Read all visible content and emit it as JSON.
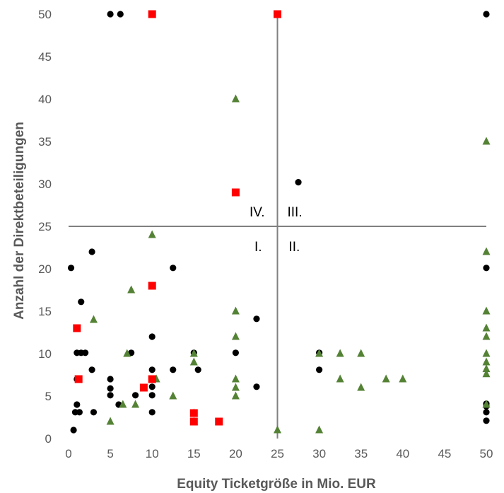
{
  "chart_data": {
    "type": "scatter",
    "title": "",
    "xlabel": "Equity Ticketgröße in Mio. EUR",
    "ylabel": "Anzahl der Direktbeteiligungen",
    "xlim": [
      0,
      50
    ],
    "ylim": [
      0,
      50
    ],
    "x_ticks": [
      "0",
      "5",
      "10",
      "15",
      "20",
      "25",
      "30",
      "35",
      "40",
      "45",
      "50"
    ],
    "y_ticks": [
      "0",
      "5",
      "10",
      "15",
      "20",
      "25",
      "30",
      "35",
      "40",
      "45",
      "50"
    ],
    "grid": false,
    "legend": "none",
    "reference_lines": {
      "x": 25,
      "y": 25
    },
    "quadrant_labels": [
      "IV.",
      "III.",
      "I.",
      "II."
    ],
    "series": [
      {
        "marker": "circle",
        "color": "#000000",
        "points": [
          [
            5,
            50
          ],
          [
            6.2,
            50
          ],
          [
            50,
            50
          ],
          [
            27.5,
            30.2
          ],
          [
            2.8,
            22
          ],
          [
            0.3,
            20.1
          ],
          [
            12.5,
            20.1
          ],
          [
            50,
            20.1
          ],
          [
            1.5,
            16.1
          ],
          [
            22.5,
            14.1
          ],
          [
            10,
            12
          ],
          [
            1,
            10.1
          ],
          [
            1.5,
            10.1
          ],
          [
            2,
            10.1
          ],
          [
            7.5,
            10.1
          ],
          [
            15,
            10.1
          ],
          [
            20,
            10.1
          ],
          [
            30,
            10.1
          ],
          [
            2.8,
            8.1
          ],
          [
            10,
            8.1
          ],
          [
            12.5,
            8.1
          ],
          [
            15.5,
            8.1
          ],
          [
            30,
            8.1
          ],
          [
            1,
            7
          ],
          [
            5,
            7
          ],
          [
            10,
            6.1
          ],
          [
            22.5,
            6.1
          ],
          [
            5,
            5.9
          ],
          [
            5,
            5.1
          ],
          [
            8,
            5.1
          ],
          [
            10,
            5.1
          ],
          [
            6,
            4
          ],
          [
            1,
            4
          ],
          [
            50,
            4.1
          ],
          [
            50,
            3.8
          ],
          [
            0.8,
            3.1
          ],
          [
            1.3,
            3.1
          ],
          [
            3,
            3.1
          ],
          [
            10,
            3.1
          ],
          [
            50,
            3.1
          ],
          [
            50,
            2.1
          ],
          [
            0.6,
            1
          ]
        ]
      },
      {
        "marker": "triangle",
        "color": "#548235",
        "points": [
          [
            20,
            40
          ],
          [
            50,
            35
          ],
          [
            10,
            24
          ],
          [
            50,
            22
          ],
          [
            7.5,
            17.5
          ],
          [
            20,
            15
          ],
          [
            50,
            15
          ],
          [
            3,
            14
          ],
          [
            50,
            13
          ],
          [
            20,
            12
          ],
          [
            50,
            12
          ],
          [
            7,
            10
          ],
          [
            15,
            10
          ],
          [
            30,
            10
          ],
          [
            32.5,
            10
          ],
          [
            35,
            10
          ],
          [
            50,
            10
          ],
          [
            15,
            9
          ],
          [
            50,
            9
          ],
          [
            50,
            8.2
          ],
          [
            50,
            7.6
          ],
          [
            10.5,
            7
          ],
          [
            20,
            7
          ],
          [
            32.5,
            7
          ],
          [
            38,
            7
          ],
          [
            40,
            7
          ],
          [
            20,
            6
          ],
          [
            35,
            6
          ],
          [
            12.5,
            5
          ],
          [
            20,
            5
          ],
          [
            6.5,
            4
          ],
          [
            8,
            4
          ],
          [
            50,
            4
          ],
          [
            15,
            3
          ],
          [
            5,
            2
          ],
          [
            15,
            2
          ],
          [
            25,
            1
          ],
          [
            30,
            1
          ]
        ]
      },
      {
        "marker": "square",
        "color": "#FF0000",
        "points": [
          [
            10,
            50
          ],
          [
            25,
            50
          ],
          [
            20,
            29
          ],
          [
            10,
            18
          ],
          [
            1,
            13
          ],
          [
            1.2,
            7
          ],
          [
            10,
            7
          ],
          [
            9,
            6
          ],
          [
            15,
            3
          ],
          [
            15,
            2
          ],
          [
            18,
            2
          ]
        ]
      }
    ]
  }
}
